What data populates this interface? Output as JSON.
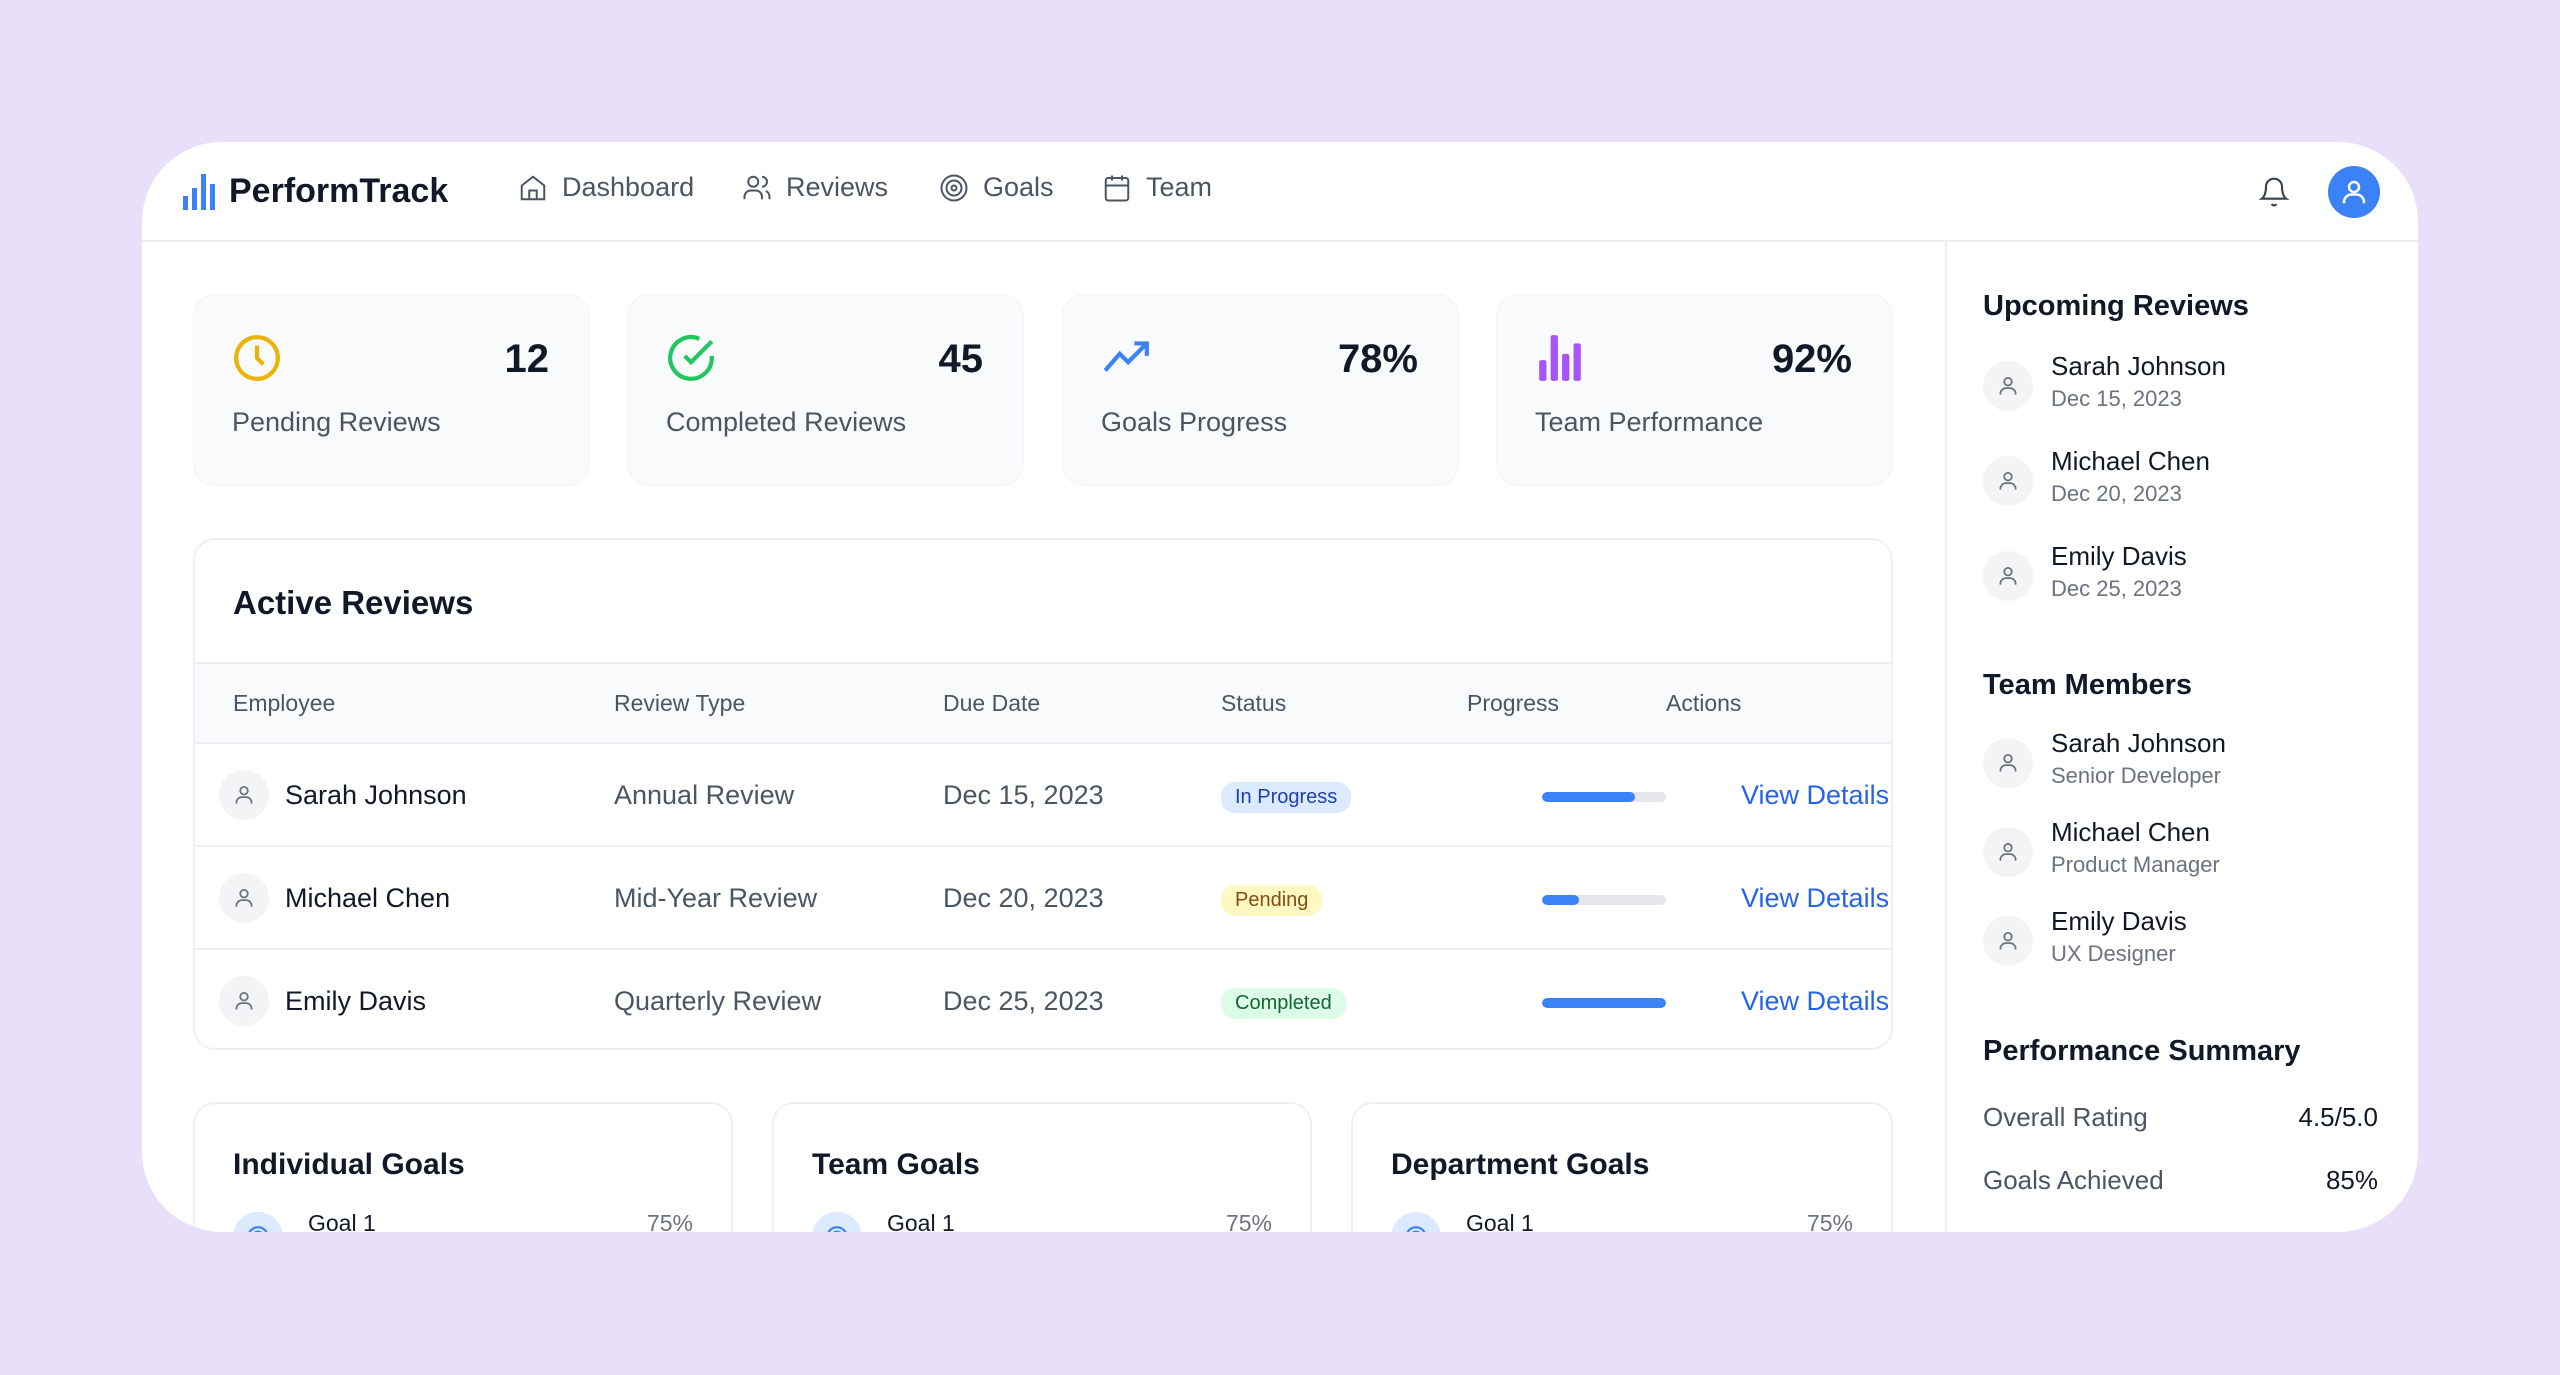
{
  "app": {
    "name": "PerformTrack"
  },
  "nav": [
    {
      "label": "Dashboard",
      "icon": "home-icon"
    },
    {
      "label": "Reviews",
      "icon": "users-icon"
    },
    {
      "label": "Goals",
      "icon": "target-icon"
    },
    {
      "label": "Team",
      "icon": "calendar-icon"
    }
  ],
  "stats": [
    {
      "value": "12",
      "label": "Pending Reviews",
      "icon": "clock-icon",
      "color": "#eab308"
    },
    {
      "value": "45",
      "label": "Completed Reviews",
      "icon": "check-circle-icon",
      "color": "#22c55e"
    },
    {
      "value": "78%",
      "label": "Goals Progress",
      "icon": "trending-up-icon",
      "color": "#3b82f6"
    },
    {
      "value": "92%",
      "label": "Team Performance",
      "icon": "bar-chart-icon",
      "color": "#a855f7"
    }
  ],
  "active_reviews": {
    "title": "Active Reviews",
    "columns": [
      "Employee",
      "Review Type",
      "Due Date",
      "Status",
      "Progress",
      "Actions"
    ],
    "rows": [
      {
        "employee": "Sarah Johnson",
        "type": "Annual Review",
        "due": "Dec 15, 2023",
        "status": "In Progress",
        "progress": 75,
        "action": "View Details"
      },
      {
        "employee": "Michael Chen",
        "type": "Mid-Year Review",
        "due": "Dec 20, 2023",
        "status": "Pending",
        "progress": 30,
        "action": "View Details"
      },
      {
        "employee": "Emily Davis",
        "type": "Quarterly Review",
        "due": "Dec 25, 2023",
        "status": "Completed",
        "progress": 100,
        "action": "View Details"
      }
    ]
  },
  "status_colors": {
    "In Progress": [
      "#dbeafe",
      "#1e40af"
    ],
    "Pending": [
      "#fef9c3",
      "#854d0e"
    ],
    "Completed": [
      "#dcfce7",
      "#166534"
    ]
  },
  "goals": [
    {
      "title": "Individual Goals",
      "item": "Goal 1",
      "pct": "75%"
    },
    {
      "title": "Team Goals",
      "item": "Goal 1",
      "pct": "75%"
    },
    {
      "title": "Department Goals",
      "item": "Goal 1",
      "pct": "75%"
    }
  ],
  "sidebar": {
    "upcoming_title": "Upcoming Reviews",
    "upcoming": [
      {
        "name": "Sarah Johnson",
        "sub": "Dec 15, 2023"
      },
      {
        "name": "Michael Chen",
        "sub": "Dec 20, 2023"
      },
      {
        "name": "Emily Davis",
        "sub": "Dec 25, 2023"
      }
    ],
    "team_title": "Team Members",
    "team": [
      {
        "name": "Sarah Johnson",
        "sub": "Senior Developer"
      },
      {
        "name": "Michael Chen",
        "sub": "Product Manager"
      },
      {
        "name": "Emily Davis",
        "sub": "UX Designer"
      }
    ],
    "summary_title": "Performance Summary",
    "summary": [
      {
        "label": "Overall Rating",
        "value": "4.5/5.0"
      },
      {
        "label": "Goals Achieved",
        "value": "85%"
      }
    ]
  }
}
